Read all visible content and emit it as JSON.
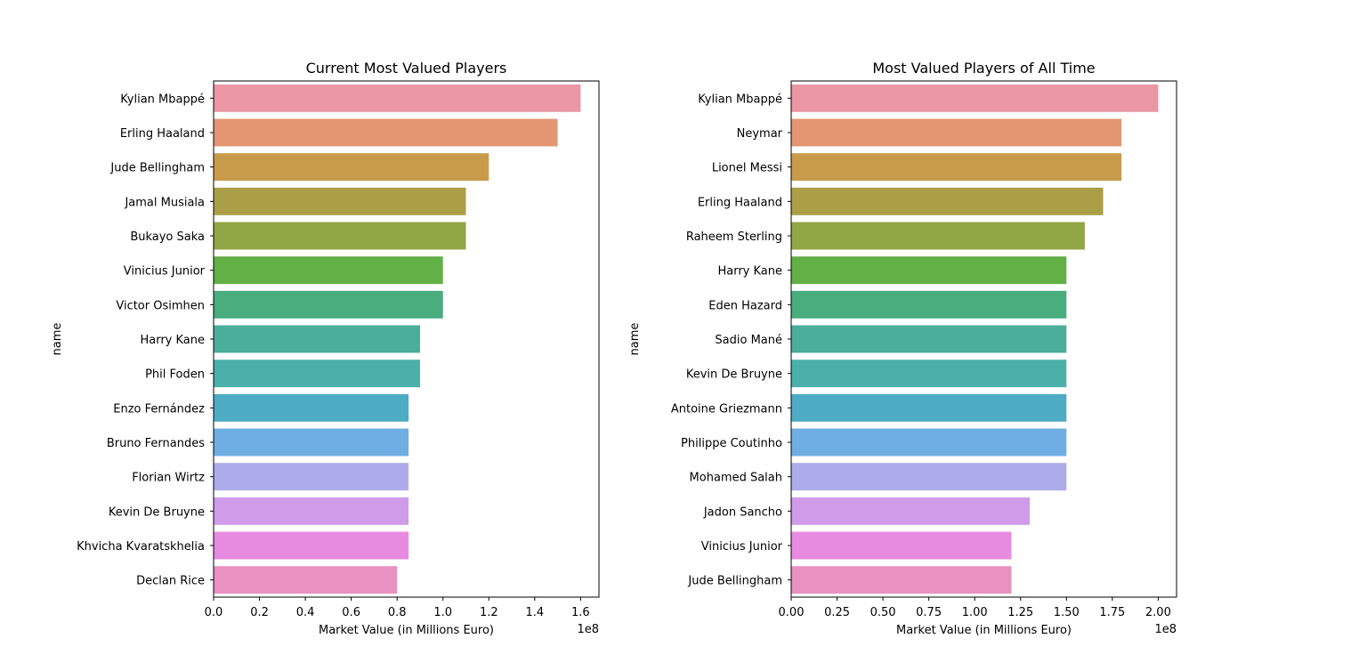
{
  "chart_data": [
    {
      "type": "bar",
      "orientation": "horizontal",
      "title": "Current Most Valued Players",
      "xlabel": "Market Value (in Millions Euro)",
      "ylabel": "name",
      "offset_text": "1e8",
      "xlim": [
        0,
        168000000
      ],
      "xticks": [
        0,
        20000000,
        40000000,
        60000000,
        80000000,
        100000000,
        120000000,
        140000000,
        160000000
      ],
      "xtick_labels": [
        "0.0",
        "0.2",
        "0.4",
        "0.6",
        "0.8",
        "1.0",
        "1.2",
        "1.4",
        "1.6"
      ],
      "categories": [
        "Kylian Mbappé",
        "Erling Haaland",
        "Jude Bellingham",
        "Jamal Musiala",
        "Bukayo Saka",
        "Vinicius Junior",
        "Victor Osimhen",
        "Harry Kane",
        "Phil Foden",
        "Enzo Fernández",
        "Bruno Fernandes",
        "Florian Wirtz",
        "Kevin De Bruyne",
        "Khvicha Kvaratskhelia",
        "Declan Rice"
      ],
      "values": [
        160000000,
        150000000,
        120000000,
        110000000,
        110000000,
        100000000,
        100000000,
        90000000,
        90000000,
        85000000,
        85000000,
        85000000,
        85000000,
        85000000,
        80000000
      ],
      "colors": [
        "#ea96a3",
        "#e49673",
        "#c79b4a",
        "#aa9f47",
        "#91a645",
        "#63b046",
        "#49ad7e",
        "#4aae9a",
        "#4bb0aa",
        "#4dabc4",
        "#6eaee3",
        "#aeabeb",
        "#d09be8",
        "#e78be0",
        "#e991c1"
      ],
      "grid": false,
      "legend": "none"
    },
    {
      "type": "bar",
      "orientation": "horizontal",
      "title": "Most Valued Players of All Time",
      "xlabel": "Market Value (in Millions Euro)",
      "ylabel": "name",
      "offset_text": "1e8",
      "xlim": [
        0,
        210000000
      ],
      "xticks": [
        0,
        25000000,
        50000000,
        75000000,
        100000000,
        125000000,
        150000000,
        175000000,
        200000000
      ],
      "xtick_labels": [
        "0.00",
        "0.25",
        "0.50",
        "0.75",
        "1.00",
        "1.25",
        "1.50",
        "1.75",
        "2.00"
      ],
      "categories": [
        "Kylian Mbappé",
        "Neymar",
        "Lionel Messi",
        "Erling Haaland",
        "Raheem Sterling",
        "Harry Kane",
        "Eden Hazard",
        "Sadio Mané",
        "Kevin De Bruyne",
        "Antoine Griezmann",
        "Philippe Coutinho",
        "Mohamed Salah",
        "Jadon Sancho",
        "Vinicius Junior",
        "Jude Bellingham"
      ],
      "values": [
        200000000,
        180000000,
        180000000,
        170000000,
        160000000,
        150000000,
        150000000,
        150000000,
        150000000,
        150000000,
        150000000,
        150000000,
        130000000,
        120000000,
        120000000
      ],
      "colors": [
        "#ea96a3",
        "#e49673",
        "#c79b4a",
        "#aa9f47",
        "#91a645",
        "#63b046",
        "#49ad7e",
        "#4aae9a",
        "#4bb0aa",
        "#4dabc4",
        "#6eaee3",
        "#aeabeb",
        "#d09be8",
        "#e78be0",
        "#e991c1"
      ],
      "grid": false,
      "legend": "none"
    }
  ]
}
